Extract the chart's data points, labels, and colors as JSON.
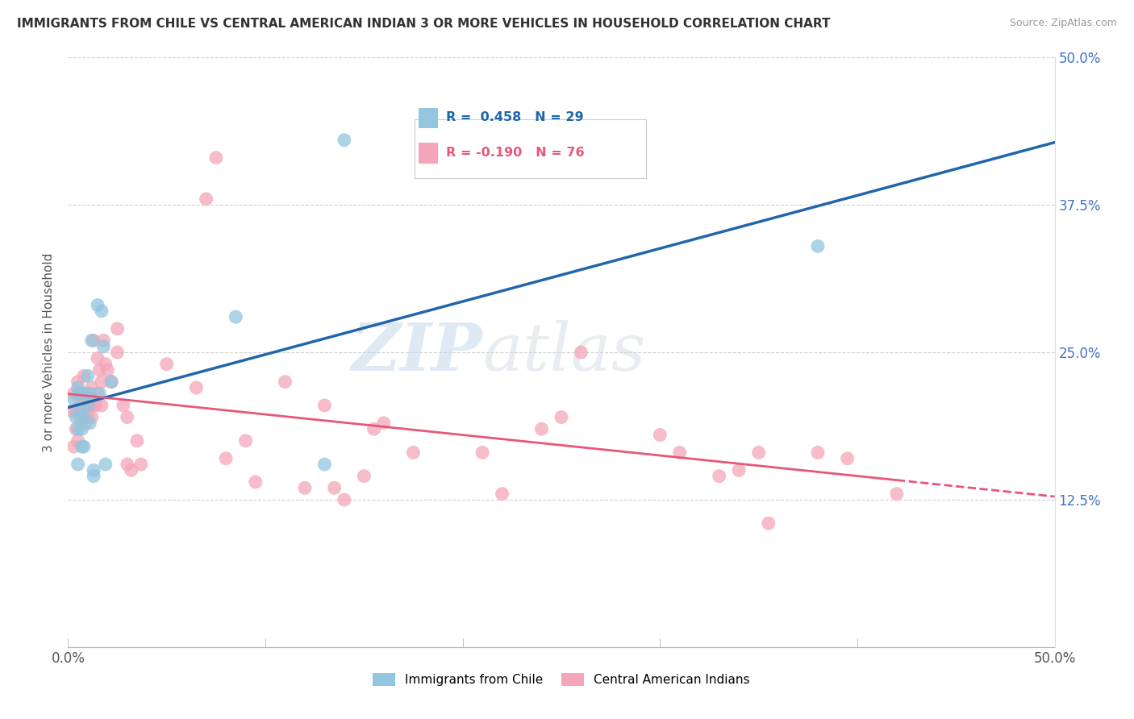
{
  "title": "IMMIGRANTS FROM CHILE VS CENTRAL AMERICAN INDIAN 3 OR MORE VEHICLES IN HOUSEHOLD CORRELATION CHART",
  "source": "Source: ZipAtlas.com",
  "ylabel": "3 or more Vehicles in Household",
  "xlim": [
    0,
    50
  ],
  "ylim": [
    0,
    50
  ],
  "xtick_vals": [
    0,
    10,
    20,
    30,
    40,
    50
  ],
  "xticklabels": [
    "0.0%",
    "",
    "",
    "",
    "",
    "50.0%"
  ],
  "ytick_vals": [
    0,
    12.5,
    25,
    37.5,
    50
  ],
  "ytick_labels_right": [
    "",
    "12.5%",
    "25.0%",
    "37.5%",
    "50.0%"
  ],
  "legend_label_blue": "Immigrants from Chile",
  "legend_label_pink": "Central American Indians",
  "blue_color": "#92c5de",
  "pink_color": "#f4a6b8",
  "blue_line_color": "#2166ac",
  "pink_line_color": "#e8567a",
  "watermark_zip": "ZIP",
  "watermark_atlas": "atlas",
  "blue_r": 0.458,
  "blue_n": 29,
  "pink_r": -0.19,
  "pink_n": 76,
  "blue_points_x": [
    0.3,
    0.4,
    0.5,
    0.5,
    0.5,
    0.6,
    0.6,
    0.7,
    0.7,
    0.8,
    0.8,
    0.9,
    1.0,
    1.0,
    1.1,
    1.1,
    1.2,
    1.3,
    1.3,
    1.5,
    1.6,
    1.7,
    1.8,
    1.9,
    2.2,
    8.5,
    13.0,
    14.0,
    38.0
  ],
  "blue_points_y": [
    21.0,
    19.5,
    18.5,
    22.0,
    15.5,
    20.0,
    21.5,
    18.5,
    17.0,
    17.0,
    19.5,
    21.5,
    23.0,
    20.5,
    21.5,
    19.0,
    26.0,
    14.5,
    15.0,
    29.0,
    21.5,
    28.5,
    25.5,
    15.5,
    22.5,
    28.0,
    15.5,
    43.0,
    34.0
  ],
  "pink_points_x": [
    0.2,
    0.3,
    0.3,
    0.4,
    0.4,
    0.5,
    0.5,
    0.5,
    0.5,
    0.6,
    0.6,
    0.6,
    0.7,
    0.7,
    0.8,
    0.8,
    0.8,
    0.9,
    0.9,
    1.0,
    1.0,
    1.0,
    1.1,
    1.1,
    1.2,
    1.2,
    1.3,
    1.3,
    1.4,
    1.5,
    1.5,
    1.6,
    1.7,
    1.7,
    1.8,
    1.9,
    2.0,
    2.2,
    2.5,
    2.5,
    2.8,
    3.0,
    3.0,
    3.2,
    3.5,
    3.7,
    5.0,
    6.5,
    7.0,
    7.5,
    8.0,
    9.0,
    9.5,
    11.0,
    12.0,
    13.0,
    13.5,
    14.0,
    15.0,
    15.5,
    16.0,
    17.5,
    21.0,
    22.0,
    24.0,
    25.0,
    26.0,
    30.0,
    31.0,
    33.0,
    34.0,
    35.0,
    35.5,
    38.0,
    39.5,
    42.0
  ],
  "pink_points_y": [
    20.0,
    17.0,
    21.5,
    20.0,
    18.5,
    21.5,
    20.0,
    22.5,
    17.5,
    21.5,
    19.5,
    20.5,
    21.5,
    20.0,
    21.5,
    23.0,
    20.0,
    20.5,
    19.0,
    21.5,
    20.5,
    19.5,
    21.0,
    20.5,
    19.5,
    22.0,
    20.5,
    26.0,
    20.5,
    24.5,
    21.5,
    23.5,
    22.5,
    20.5,
    26.0,
    24.0,
    23.5,
    22.5,
    27.0,
    25.0,
    20.5,
    15.5,
    19.5,
    15.0,
    17.5,
    15.5,
    24.0,
    22.0,
    38.0,
    41.5,
    16.0,
    17.5,
    14.0,
    22.5,
    13.5,
    20.5,
    13.5,
    12.5,
    14.5,
    18.5,
    19.0,
    16.5,
    16.5,
    13.0,
    18.5,
    19.5,
    25.0,
    18.0,
    16.5,
    14.5,
    15.0,
    16.5,
    10.5,
    16.5,
    16.0,
    13.0
  ]
}
